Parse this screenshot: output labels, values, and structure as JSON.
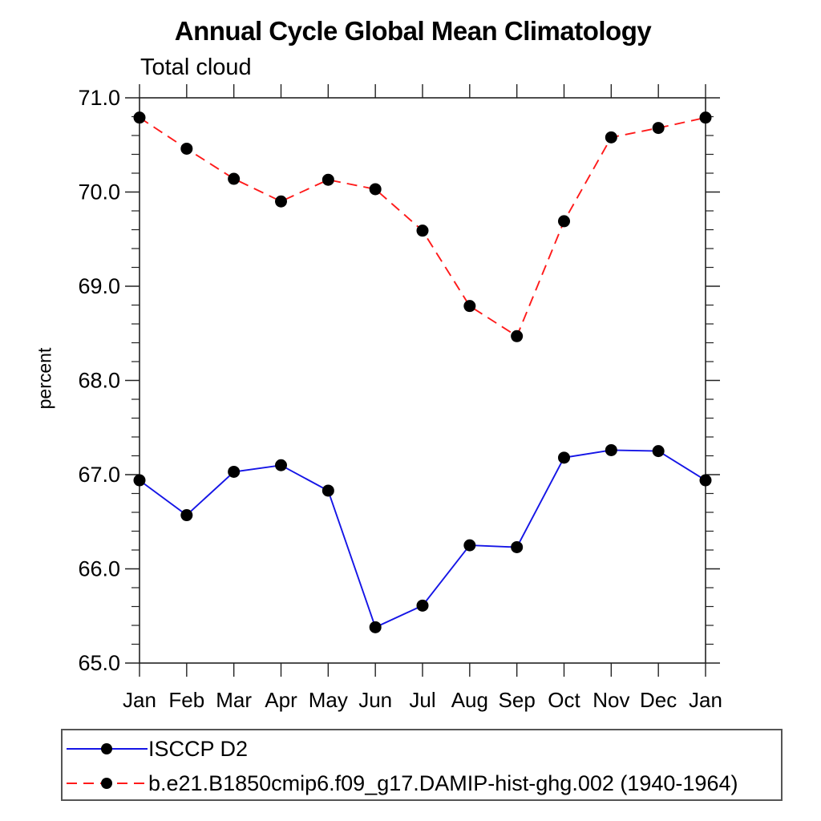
{
  "chart_data": {
    "type": "line",
    "title": "Annual Cycle Global Mean Climatology",
    "panel_label": "Total cloud",
    "ylabel": "percent",
    "xlabel": "",
    "categories": [
      "Jan",
      "Feb",
      "Mar",
      "Apr",
      "May",
      "Jun",
      "Jul",
      "Aug",
      "Sep",
      "Oct",
      "Nov",
      "Dec",
      "Jan"
    ],
    "y_axis": {
      "min": 65.0,
      "max": 71.0,
      "major_step": 1.0,
      "minor_step": 0.2,
      "tick_labels": [
        "71.0",
        "70.0",
        "69.0",
        "68.0",
        "67.0",
        "66.0",
        "65.0"
      ]
    },
    "grid": false,
    "legend_position": "bottom",
    "series": [
      {
        "name": "ISCCP D2",
        "color": "#1515e6",
        "line_style": "solid",
        "marker": "filled-circle",
        "marker_color": "#000000",
        "values": [
          66.94,
          66.57,
          67.03,
          67.1,
          66.83,
          65.38,
          65.61,
          66.25,
          66.23,
          67.18,
          67.26,
          67.25,
          66.94
        ]
      },
      {
        "name": "b.e21.B1850cmip6.f09_g17.DAMIP-hist-ghg.002 (1940-1964)",
        "color": "#ff1a1a",
        "line_style": "dashed",
        "marker": "filled-circle",
        "marker_color": "#000000",
        "values": [
          70.79,
          70.46,
          70.14,
          69.9,
          70.13,
          70.03,
          69.59,
          68.79,
          68.47,
          69.69,
          70.58,
          70.68,
          70.79
        ]
      }
    ]
  },
  "frame_color": "#222222"
}
